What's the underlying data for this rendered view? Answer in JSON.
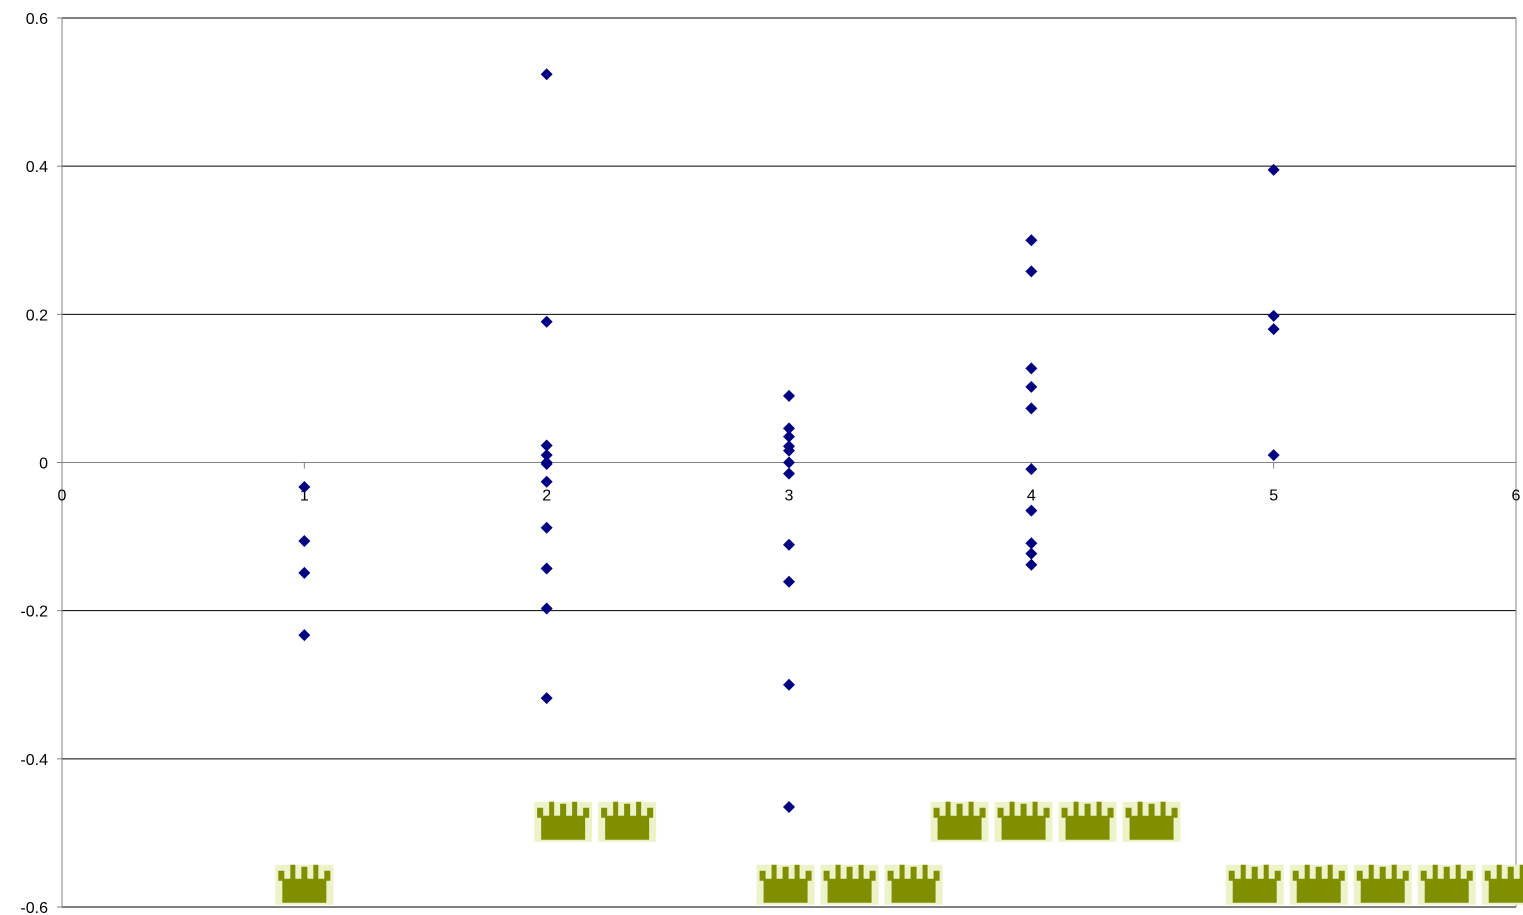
{
  "chart_data": {
    "type": "scatter",
    "title": "",
    "xlabel": "",
    "ylabel": "",
    "xlim": [
      0,
      6
    ],
    "ylim": [
      -0.6,
      0.6
    ],
    "x_ticks": [
      0,
      1,
      2,
      3,
      4,
      5,
      6
    ],
    "x_tick_labels": [
      "0",
      "1",
      "2",
      "3",
      "4",
      "5",
      "6"
    ],
    "y_ticks": [
      -0.6,
      -0.4,
      -0.2,
      0,
      0.2,
      0.4,
      0.6
    ],
    "y_tick_labels": [
      "-0.6",
      "-0.4",
      "-0.2",
      "0",
      "0.2",
      "0.4",
      "0.6"
    ],
    "grid": "horizontal",
    "legend": "none",
    "marker": "diamond",
    "colors": {
      "points": "#000080",
      "grid": "#000000",
      "axis": "#808080",
      "icon": "#7f8f00"
    },
    "series": [
      {
        "points": [
          [
            1,
            -0.033
          ],
          [
            1,
            -0.106
          ],
          [
            1,
            -0.149
          ],
          [
            1,
            -0.233
          ],
          [
            2,
            0.524
          ],
          [
            2,
            0.19
          ],
          [
            2,
            0.023
          ],
          [
            2,
            0.01
          ],
          [
            2,
            0.0
          ],
          [
            2,
            -0.002
          ],
          [
            2,
            -0.026
          ],
          [
            2,
            -0.088
          ],
          [
            2,
            -0.143
          ],
          [
            2,
            -0.197
          ],
          [
            2,
            -0.318
          ],
          [
            3,
            0.09
          ],
          [
            3,
            0.046
          ],
          [
            3,
            0.035
          ],
          [
            3,
            0.022
          ],
          [
            3,
            0.016
          ],
          [
            3,
            0.0
          ],
          [
            3,
            -0.015
          ],
          [
            3,
            -0.111
          ],
          [
            3,
            -0.161
          ],
          [
            3,
            -0.3
          ],
          [
            3,
            -0.465
          ],
          [
            4,
            0.3
          ],
          [
            4,
            0.258
          ],
          [
            4,
            0.127
          ],
          [
            4,
            0.102
          ],
          [
            4,
            0.073
          ],
          [
            4,
            -0.009
          ],
          [
            4,
            -0.065
          ],
          [
            4,
            -0.109
          ],
          [
            4,
            -0.123
          ],
          [
            4,
            -0.138
          ],
          [
            5,
            0.395
          ],
          [
            5,
            0.198
          ],
          [
            5,
            0.18
          ],
          [
            5,
            0.01
          ]
        ]
      }
    ],
    "decorations": {
      "icon": "crown-icon",
      "groups": [
        {
          "x": 1.0,
          "y": -0.57,
          "count": 1
        },
        {
          "x": 2.2,
          "y": -0.485,
          "count": 2
        },
        {
          "x": 3.25,
          "y": -0.57,
          "count": 3
        },
        {
          "x": 4.1,
          "y": -0.485,
          "count": 4
        },
        {
          "x": 5.45,
          "y": -0.57,
          "count": 5
        }
      ]
    }
  }
}
